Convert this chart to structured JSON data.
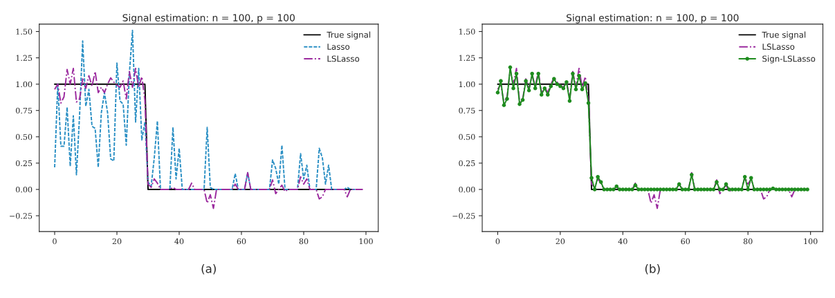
{
  "chart_data": [
    {
      "type": "line",
      "title": "Signal estimation: n = 100, p = 100",
      "annotations": [
        "(a)"
      ],
      "xlim": [
        -4.95,
        103.95
      ],
      "xticks": [
        0,
        20,
        40,
        60,
        80,
        100
      ],
      "ylim": [
        -0.4,
        1.57
      ],
      "yticks": [
        {
          "value": -0.25,
          "label": "−0.25"
        },
        {
          "value": 0,
          "label": "0.00"
        },
        {
          "value": 0.25,
          "label": "0.25"
        },
        {
          "value": 0.5,
          "label": "0.50"
        },
        {
          "value": 0.75,
          "label": "0.75"
        },
        {
          "value": 1,
          "label": "1.00"
        },
        {
          "value": 1.25,
          "label": "1.25"
        },
        {
          "value": 1.5,
          "label": "1.50"
        }
      ],
      "legend": "top right",
      "grid": false,
      "x": [
        0,
        1,
        2,
        3,
        4,
        5,
        6,
        7,
        8,
        9,
        10,
        11,
        12,
        13,
        14,
        15,
        16,
        17,
        18,
        19,
        20,
        21,
        22,
        23,
        24,
        25,
        26,
        27,
        28,
        29,
        30,
        31,
        32,
        33,
        34,
        35,
        36,
        37,
        38,
        39,
        40,
        41,
        42,
        43,
        44,
        45,
        46,
        47,
        48,
        49,
        50,
        51,
        52,
        53,
        54,
        55,
        56,
        57,
        58,
        59,
        60,
        61,
        62,
        63,
        64,
        65,
        66,
        67,
        68,
        69,
        70,
        71,
        72,
        73,
        74,
        75,
        76,
        77,
        78,
        79,
        80,
        81,
        82,
        83,
        84,
        85,
        86,
        87,
        88,
        89,
        90,
        91,
        92,
        93,
        94,
        95,
        96,
        97,
        98,
        99
      ],
      "series": [
        {
          "name": "True signal",
          "color": "#000000",
          "line_style": "solid",
          "marker": "none",
          "values": [
            1,
            1,
            1,
            1,
            1,
            1,
            1,
            1,
            1,
            1,
            1,
            1,
            1,
            1,
            1,
            1,
            1,
            1,
            1,
            1,
            1,
            1,
            1,
            1,
            1,
            1,
            1,
            1,
            1,
            1,
            0,
            0,
            0,
            0,
            0,
            0,
            0,
            0,
            0,
            0,
            0,
            0,
            0,
            0,
            0,
            0,
            0,
            0,
            0,
            0,
            0,
            0,
            0,
            0,
            0,
            0,
            0,
            0,
            0,
            0,
            0,
            0,
            0,
            0,
            0,
            0,
            0,
            0,
            0,
            0,
            0,
            0,
            0,
            0,
            0,
            0,
            0,
            0,
            0,
            0,
            0,
            0,
            0,
            0,
            0,
            0,
            0,
            0,
            0,
            0,
            0,
            0,
            0,
            0,
            0,
            0,
            0,
            null,
            null,
            null
          ]
        },
        {
          "name": "Lasso",
          "color": "#2a8fc4",
          "line_style": "dashed",
          "marker": "none",
          "values": [
            0.21,
            1.0,
            0.41,
            0.41,
            0.78,
            0.22,
            0.7,
            0.14,
            0.7,
            1.41,
            0.79,
            0.95,
            0.6,
            0.58,
            0.21,
            0.73,
            0.92,
            0.73,
            0.29,
            0.27,
            1.2,
            0.84,
            0.81,
            0.42,
            1.1,
            1.51,
            0.64,
            1.15,
            0.47,
            0.64,
            0.07,
            0.03,
            0.3,
            0.65,
            0,
            0,
            0,
            0,
            0.59,
            0.1,
            0.39,
            0,
            0,
            0,
            0,
            0,
            0,
            0,
            0,
            0.59,
            0.02,
            0,
            0,
            0,
            0,
            0,
            0,
            0,
            0.15,
            0,
            0,
            0,
            0.16,
            0,
            0,
            0,
            0,
            0,
            0,
            0,
            0.28,
            0.2,
            0.05,
            0.42,
            0,
            0,
            0,
            0,
            0,
            0.34,
            0.1,
            0.23,
            0,
            0,
            0,
            0.39,
            0.3,
            0.05,
            0.23,
            0,
            0,
            0,
            0,
            0,
            0.02,
            0,
            0,
            0,
            null,
            null
          ]
        },
        {
          "name": "LSLasso",
          "color": "#9b2a9e",
          "line_style": "dashdot",
          "marker": "none",
          "values": [
            0.95,
            1.0,
            0.82,
            0.88,
            1.14,
            1.0,
            1.15,
            0.83,
            0.86,
            1.05,
            0.96,
            1.08,
            0.98,
            1.12,
            0.92,
            0.97,
            0.92,
            1.0,
            1.06,
            1.02,
            0.99,
            0.97,
            1.03,
            0.86,
            1.12,
            0.97,
            1.15,
            0.97,
            1.07,
            0.85,
            0.05,
            0.02,
            0.1,
            0.06,
            0,
            0,
            0,
            0,
            0.02,
            0,
            0,
            0,
            0,
            0,
            0.06,
            0,
            0,
            0,
            0,
            -0.13,
            -0.05,
            -0.18,
            0,
            0,
            0,
            0,
            0,
            0,
            0.05,
            0,
            0,
            0,
            0.16,
            0,
            0,
            0,
            0,
            0,
            0,
            0,
            0.09,
            -0.04,
            0,
            0.04,
            -0.02,
            0,
            0,
            0,
            0,
            0.12,
            0.05,
            0.1,
            0,
            0,
            0,
            -0.09,
            -0.07,
            0,
            0,
            0,
            0,
            0,
            0,
            0,
            -0.07,
            0,
            0,
            0,
            0,
            0
          ]
        }
      ]
    },
    {
      "type": "line",
      "title": "Signal estimation: n = 100, p = 100",
      "annotations": [
        "(b)"
      ],
      "xlim": [
        -4.95,
        103.95
      ],
      "xticks": [
        0,
        20,
        40,
        60,
        80,
        100
      ],
      "ylim": [
        -0.4,
        1.57
      ],
      "yticks": [
        {
          "value": -0.25,
          "label": "−0.25"
        },
        {
          "value": 0,
          "label": "0.00"
        },
        {
          "value": 0.25,
          "label": "0.25"
        },
        {
          "value": 0.5,
          "label": "0.50"
        },
        {
          "value": 0.75,
          "label": "0.75"
        },
        {
          "value": 1,
          "label": "1.00"
        },
        {
          "value": 1.25,
          "label": "1.25"
        },
        {
          "value": 1.5,
          "label": "1.50"
        }
      ],
      "legend": "top right",
      "grid": false,
      "x": [
        0,
        1,
        2,
        3,
        4,
        5,
        6,
        7,
        8,
        9,
        10,
        11,
        12,
        13,
        14,
        15,
        16,
        17,
        18,
        19,
        20,
        21,
        22,
        23,
        24,
        25,
        26,
        27,
        28,
        29,
        30,
        31,
        32,
        33,
        34,
        35,
        36,
        37,
        38,
        39,
        40,
        41,
        42,
        43,
        44,
        45,
        46,
        47,
        48,
        49,
        50,
        51,
        52,
        53,
        54,
        55,
        56,
        57,
        58,
        59,
        60,
        61,
        62,
        63,
        64,
        65,
        66,
        67,
        68,
        69,
        70,
        71,
        72,
        73,
        74,
        75,
        76,
        77,
        78,
        79,
        80,
        81,
        82,
        83,
        84,
        85,
        86,
        87,
        88,
        89,
        90,
        91,
        92,
        93,
        94,
        95,
        96,
        97,
        98,
        99
      ],
      "series": [
        {
          "name": "True signal",
          "color": "#000000",
          "line_style": "solid",
          "marker": "none",
          "values": [
            1,
            1,
            1,
            1,
            1,
            1,
            1,
            1,
            1,
            1,
            1,
            1,
            1,
            1,
            1,
            1,
            1,
            1,
            1,
            1,
            1,
            1,
            1,
            1,
            1,
            1,
            1,
            1,
            1,
            1,
            0,
            0,
            0,
            0,
            0,
            0,
            0,
            0,
            0,
            0,
            0,
            0,
            0,
            0,
            0,
            0,
            0,
            0,
            0,
            0,
            0,
            0,
            0,
            0,
            0,
            0,
            0,
            0,
            0,
            0,
            0,
            0,
            0,
            0,
            0,
            0,
            0,
            0,
            0,
            0,
            0,
            0,
            0,
            0,
            0,
            0,
            0,
            0,
            0,
            0,
            0,
            0,
            0,
            0,
            null,
            null,
            null,
            null,
            null,
            null,
            null,
            null,
            null,
            null,
            null,
            null,
            null,
            null,
            null,
            null
          ]
        },
        {
          "name": "LSLasso",
          "color": "#9b2a9e",
          "line_style": "dashdot",
          "marker": "none",
          "values": [
            0.95,
            1.0,
            0.82,
            0.88,
            1.14,
            1.0,
            1.15,
            0.83,
            0.86,
            1.05,
            0.96,
            1.08,
            0.98,
            1.12,
            0.92,
            0.97,
            0.92,
            1.0,
            1.06,
            1.02,
            0.99,
            0.97,
            1.03,
            0.86,
            1.12,
            0.97,
            1.15,
            0.97,
            1.07,
            0.85,
            0.05,
            0.02,
            0.1,
            0.06,
            0,
            0,
            0,
            0,
            0.02,
            0,
            0,
            0,
            0,
            0,
            0.06,
            0,
            0,
            0,
            0,
            -0.13,
            -0.05,
            -0.18,
            0,
            0,
            0,
            0,
            0,
            0,
            0.05,
            0,
            0,
            0,
            0.16,
            0,
            0,
            0,
            0,
            0,
            0,
            0,
            0.09,
            -0.04,
            0,
            0.04,
            -0.02,
            0,
            0,
            0,
            0,
            0.12,
            0.05,
            0.1,
            0,
            0,
            0,
            -0.09,
            -0.07,
            0,
            0,
            0,
            0,
            0,
            0,
            0,
            -0.07,
            0,
            0,
            0,
            null,
            null
          ]
        },
        {
          "name": "Sign-LSLasso",
          "color": "#1e8c1e",
          "line_style": "solid",
          "marker": "circle",
          "values": [
            0.92,
            1.03,
            0.8,
            0.86,
            1.16,
            0.96,
            1.1,
            0.81,
            0.85,
            1.03,
            0.94,
            1.1,
            0.96,
            1.1,
            0.9,
            0.96,
            0.9,
            0.98,
            1.05,
            1.0,
            0.98,
            0.96,
            1.02,
            0.84,
            1.1,
            0.95,
            1.08,
            0.95,
            1.01,
            0.82,
            0.11,
            0,
            0.12,
            0.07,
            0,
            0,
            0,
            0,
            0.03,
            0,
            0,
            0,
            0,
            0,
            0.04,
            0,
            0,
            0,
            0,
            0,
            0,
            0,
            0,
            0,
            0,
            0,
            0,
            0,
            0.05,
            0,
            0,
            0,
            0.14,
            0,
            0,
            0,
            0,
            0,
            0,
            0,
            0.07,
            0,
            0,
            0.05,
            0,
            0,
            0,
            0,
            0,
            0.12,
            0,
            0.11,
            0,
            0,
            0,
            0,
            0,
            0,
            0.01,
            0,
            0,
            0,
            0,
            0,
            0,
            0,
            0,
            0,
            0,
            0
          ]
        }
      ]
    }
  ]
}
